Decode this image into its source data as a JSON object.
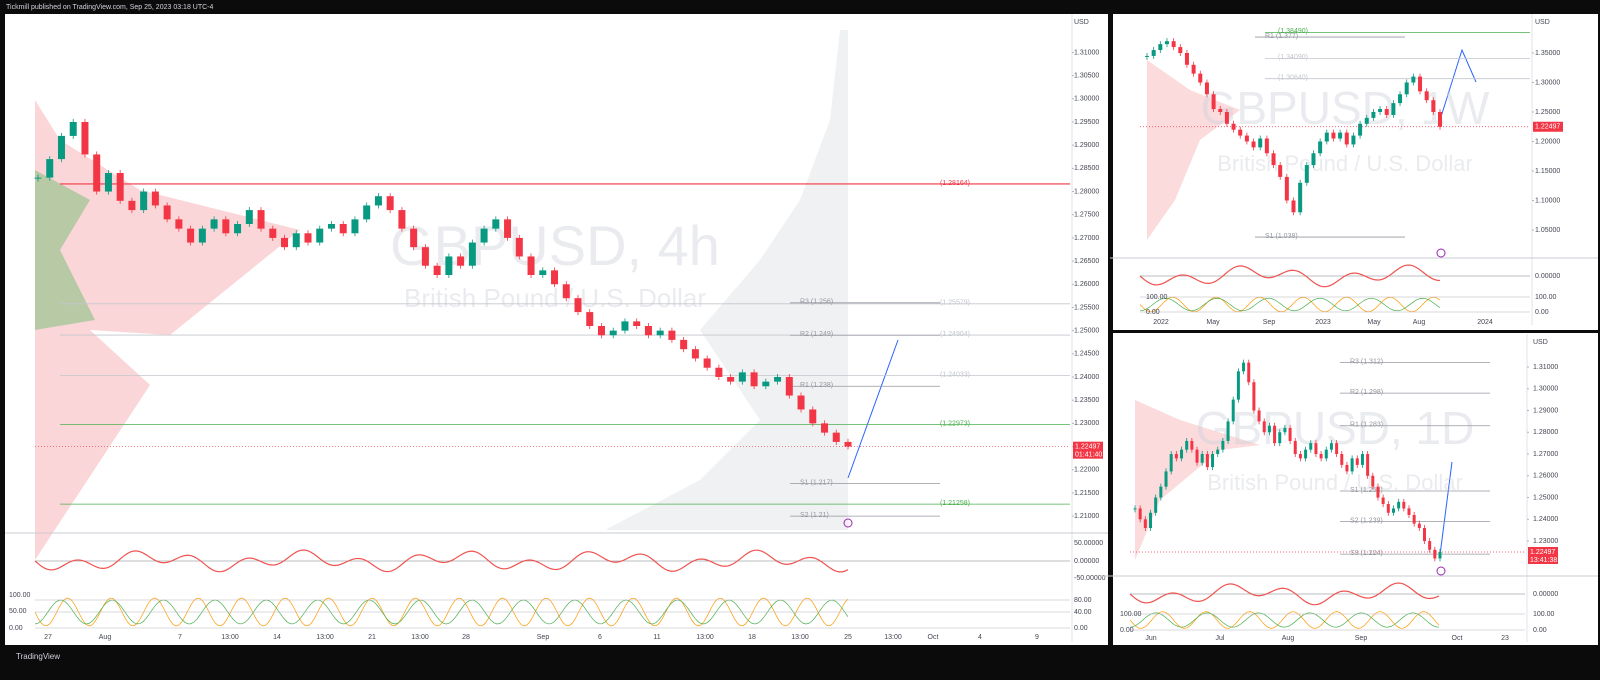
{
  "header": "Tickmill published on TradingView.com, Sep 25, 2023 03:18 UTC-4",
  "footer": "TradingView",
  "panels": [
    {
      "symbol": "GBPUSD, 4h",
      "description": "British Pound / U.S. Dollar",
      "currency": "USD",
      "price": {
        "value": 1.22497,
        "label": "1.22497",
        "countdown": "01:41:40"
      },
      "ylim": [
        1.207,
        1.317
      ],
      "yticks": [
        {
          "value": 1.21,
          "label": "1.21000"
        },
        {
          "value": 1.215,
          "label": "1.21500"
        },
        {
          "value": 1.22,
          "label": "1.22000"
        },
        {
          "value": 1.225,
          "label": "1.22500"
        },
        {
          "value": 1.23,
          "label": "1.23000"
        },
        {
          "value": 1.235,
          "label": "1.23500"
        },
        {
          "value": 1.24,
          "label": "1.24000"
        },
        {
          "value": 1.245,
          "label": "1.24500"
        },
        {
          "value": 1.25,
          "label": "1.25000"
        },
        {
          "value": 1.255,
          "label": "1.25500"
        },
        {
          "value": 1.26,
          "label": "1.26000"
        },
        {
          "value": 1.265,
          "label": "1.26500"
        },
        {
          "value": 1.27,
          "label": "1.27000"
        },
        {
          "value": 1.275,
          "label": "1.27500"
        },
        {
          "value": 1.28,
          "label": "1.28000"
        },
        {
          "value": 1.285,
          "label": "1.28500"
        },
        {
          "value": 1.29,
          "label": "1.29000"
        },
        {
          "value": 1.295,
          "label": "1.29500"
        },
        {
          "value": 1.3,
          "label": "1.30000"
        },
        {
          "value": 1.305,
          "label": "1.30500"
        },
        {
          "value": 1.31,
          "label": "1.31000"
        }
      ],
      "closes": [
        1.283,
        1.287,
        1.292,
        1.295,
        1.288,
        1.28,
        1.284,
        1.278,
        1.276,
        1.28,
        1.277,
        1.274,
        1.272,
        1.269,
        1.272,
        1.274,
        1.271,
        1.273,
        1.276,
        1.272,
        1.27,
        1.268,
        1.271,
        1.269,
        1.272,
        1.273,
        1.271,
        1.274,
        1.277,
        1.279,
        1.276,
        1.272,
        1.268,
        1.264,
        1.262,
        1.266,
        1.264,
        1.269,
        1.272,
        1.274,
        1.27,
        1.266,
        1.262,
        1.263,
        1.26,
        1.257,
        1.254,
        1.251,
        1.249,
        1.25,
        1.252,
        1.251,
        1.249,
        1.25,
        1.248,
        1.246,
        1.244,
        1.242,
        1.24,
        1.239,
        1.241,
        1.238,
        1.239,
        1.24,
        1.236,
        1.233,
        1.23,
        1.228,
        1.226,
        1.225
      ],
      "levels": [
        {
          "label": "(1.28164)",
          "value": 1.28164,
          "color": "#f23645"
        },
        {
          "label": "(1.25579)",
          "value": 1.25579,
          "color": "#c3c6ce"
        },
        {
          "label": "(1.24904)",
          "value": 1.24904,
          "color": "#c3c6ce"
        },
        {
          "label": "(1.24033)",
          "value": 1.24033,
          "color": "#c3c6ce"
        },
        {
          "label": "(1.22973)",
          "value": 1.22973,
          "color": "#4caf50"
        },
        {
          "label": "(1.21258)",
          "value": 1.21258,
          "color": "#4caf50"
        },
        {
          "label": "R3 (1.256)",
          "value": 1.256,
          "color": "#9598a1"
        },
        {
          "label": "R2 (1.249)",
          "value": 1.249,
          "color": "#9598a1"
        },
        {
          "label": "R1 (1.238)",
          "value": 1.238,
          "color": "#9598a1"
        },
        {
          "label": "S1 (1.217)",
          "value": 1.217,
          "color": "#9598a1"
        },
        {
          "label": "S2 (1.21)",
          "value": 1.21,
          "color": "#9598a1"
        }
      ],
      "osc1": [
        "50.00000",
        "0.00000",
        "-50.00000"
      ],
      "osc2": [
        "80.00",
        "40.00",
        "0.00"
      ],
      "osc2_left": [
        "100.00",
        "50.00",
        "0.00"
      ],
      "times": [
        "27",
        "Aug",
        "7",
        "13:00",
        "14",
        "13:00",
        "21",
        "13:00",
        "28",
        "Sep",
        "6",
        "11",
        "13:00",
        "18",
        "13:00",
        "25",
        "13:00",
        "Oct",
        "4",
        "9"
      ]
    },
    {
      "symbol": "GBPUSD, 1W",
      "description": "British Pound / U.S. Dollar",
      "currency": "USD",
      "price": {
        "value": 1.22497,
        "label": "1.22497"
      },
      "ylim": [
        1.0025,
        1.4059
      ],
      "yticks": [
        {
          "value": 1.05,
          "label": "1.05000"
        },
        {
          "value": 1.1,
          "label": "1.10000"
        },
        {
          "value": 1.15,
          "label": "1.15000"
        },
        {
          "value": 1.2,
          "label": "1.20000"
        },
        {
          "value": 1.25,
          "label": "1.25000"
        },
        {
          "value": 1.3,
          "label": "1.30000"
        },
        {
          "value": 1.35,
          "label": "1.35000"
        }
      ],
      "closes": [
        1.345,
        1.355,
        1.365,
        1.37,
        1.36,
        1.35,
        1.33,
        1.315,
        1.3,
        1.28,
        1.255,
        1.25,
        1.23,
        1.22,
        1.21,
        1.2,
        1.19,
        1.205,
        1.18,
        1.16,
        1.14,
        1.1,
        1.08,
        1.13,
        1.16,
        1.18,
        1.2,
        1.215,
        1.205,
        1.215,
        1.195,
        1.21,
        1.23,
        1.24,
        1.25,
        1.255,
        1.245,
        1.265,
        1.28,
        1.3,
        1.31,
        1.285,
        1.27,
        1.25,
        1.225
      ],
      "levels": [
        {
          "label": "(1.38490)",
          "value": 1.3849,
          "color": "#4caf50"
        },
        {
          "label": "R1 (1.377)",
          "value": 1.377,
          "color": "#9598a1"
        },
        {
          "label": "(1.34090)",
          "value": 1.3409,
          "color": "#c3c6ce"
        },
        {
          "label": "(1.30640)",
          "value": 1.3064,
          "color": "#c3c6ce"
        },
        {
          "label": "S1 (1.038)",
          "value": 1.038,
          "color": "#9598a1"
        }
      ],
      "osc1": [
        "0.00000"
      ],
      "osc2": [
        "100.00",
        "0.00"
      ],
      "osc2_left": [
        "100.00",
        "0.00"
      ],
      "times": [
        "2022",
        "May",
        "Sep",
        "2023",
        "May",
        "Aug",
        "2024"
      ]
    },
    {
      "symbol": "GBPUSD, 1D",
      "description": "British Pound / U.S. Dollar",
      "currency": "USD",
      "price": {
        "value": 1.22497,
        "label": "1.22497",
        "countdown": "13:41:38"
      },
      "ylim": [
        1.2144,
        1.3224
      ],
      "yticks": [
        {
          "value": 1.23,
          "label": "1.23000"
        },
        {
          "value": 1.24,
          "label": "1.24000"
        },
        {
          "value": 1.25,
          "label": "1.25000"
        },
        {
          "value": 1.26,
          "label": "1.26000"
        },
        {
          "value": 1.27,
          "label": "1.27000"
        },
        {
          "value": 1.28,
          "label": "1.28000"
        },
        {
          "value": 1.29,
          "label": "1.29000"
        },
        {
          "value": 1.3,
          "label": "1.30000"
        },
        {
          "value": 1.31,
          "label": "1.31000"
        }
      ],
      "closes": [
        1.245,
        1.24,
        1.236,
        1.243,
        1.25,
        1.255,
        1.262,
        1.27,
        1.268,
        1.272,
        1.276,
        1.272,
        1.266,
        1.27,
        1.264,
        1.27,
        1.272,
        1.276,
        1.285,
        1.295,
        1.308,
        1.312,
        1.303,
        1.29,
        1.285,
        1.28,
        1.283,
        1.275,
        1.28,
        1.282,
        1.276,
        1.27,
        1.268,
        1.272,
        1.275,
        1.27,
        1.268,
        1.272,
        1.275,
        1.27,
        1.265,
        1.262,
        1.268,
        1.265,
        1.27,
        1.26,
        1.255,
        1.25,
        1.247,
        1.243,
        1.245,
        1.248,
        1.245,
        1.242,
        1.238,
        1.236,
        1.23,
        1.226,
        1.222,
        1.225
      ],
      "levels": [
        {
          "label": "R3 (1.312)",
          "value": 1.312,
          "color": "#9598a1"
        },
        {
          "label": "R2 (1.298)",
          "value": 1.298,
          "color": "#9598a1"
        },
        {
          "label": "R1 (1.283)",
          "value": 1.283,
          "color": "#9598a1"
        },
        {
          "label": "S1 (1.253)",
          "value": 1.253,
          "color": "#9598a1"
        },
        {
          "label": "S2 (1.239)",
          "value": 1.239,
          "color": "#9598a1"
        },
        {
          "label": "S3 (1.224)",
          "value": 1.224,
          "color": "#9598a1"
        }
      ],
      "osc1": [
        "0.00000"
      ],
      "osc2": [
        "100.00",
        "0.00"
      ],
      "osc2_left": [
        "100.00",
        "0.00"
      ],
      "times": [
        "Jun",
        "Jul",
        "Aug",
        "Sep",
        "Oct",
        "23"
      ]
    }
  ]
}
